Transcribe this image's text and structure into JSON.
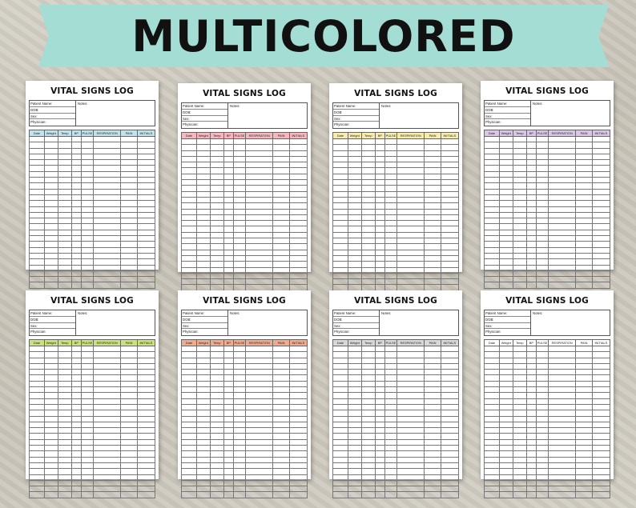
{
  "banner": {
    "title": "MULTICOLORED"
  },
  "log": {
    "title": "VITAL SIGNS LOG",
    "fields": [
      "Patient Name:",
      "DOB:",
      "Sex:",
      "Physician:"
    ],
    "notes_label": "Notes:",
    "columns": [
      "Date",
      "Weight",
      "Temp",
      "BP",
      "PULSE",
      "RESPIRATION",
      "PAIN",
      "INITIALS"
    ],
    "row_count": 26
  },
  "variants": [
    {
      "id": "blue",
      "header_color": "#bfe4ee"
    },
    {
      "id": "pink",
      "header_color": "#f4b8be"
    },
    {
      "id": "yellow",
      "header_color": "#f6ecb0"
    },
    {
      "id": "purple",
      "header_color": "#d9c6e8"
    },
    {
      "id": "green",
      "header_color": "#c9e27a"
    },
    {
      "id": "orange",
      "header_color": "#f2aa8c"
    },
    {
      "id": "gray",
      "header_color": "#d8d8d8"
    },
    {
      "id": "white",
      "header_color": "#ffffff"
    }
  ]
}
